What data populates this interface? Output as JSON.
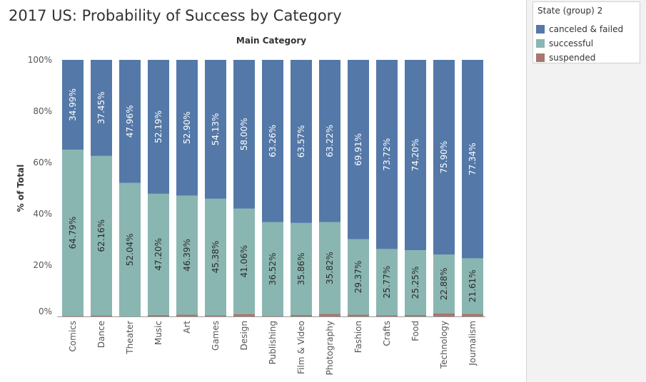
{
  "colors": {
    "canceled_failed": "#5479a8",
    "successful": "#8ab6b1",
    "suspended": "#a8776f",
    "axis": "#666666",
    "grid": "#e6e6e6"
  },
  "legend": {
    "title": "State (group) 2",
    "items": [
      {
        "label": "canceled & failed",
        "color": "#5479a8"
      },
      {
        "label": "successful",
        "color": "#8ab6b1"
      },
      {
        "label": "suspended",
        "color": "#a8776f"
      }
    ]
  },
  "chart_data": {
    "type": "bar",
    "stacked": true,
    "title": "2017 US: Probability of Success by Category",
    "column_header": "Main Category",
    "xlabel": "",
    "ylabel": "% of Total",
    "ylim": [
      0,
      100
    ],
    "y_ticks": [
      "0%",
      "20%",
      "40%",
      "60%",
      "80%",
      "100%"
    ],
    "categories": [
      "Comics",
      "Dance",
      "Theater",
      "Music",
      "Art",
      "Games",
      "Design",
      "Publishing",
      "Film & Video",
      "Photography",
      "Fashion",
      "Crafts",
      "Food",
      "Technology",
      "Journalism"
    ],
    "series": [
      {
        "name": "suspended",
        "values": [
          0.22,
          0.39,
          0.0,
          0.61,
          0.71,
          0.49,
          0.94,
          0.22,
          0.57,
          0.96,
          0.72,
          0.51,
          0.55,
          1.22,
          1.05
        ],
        "labels": [
          "",
          "",
          "",
          "",
          "",
          "",
          "",
          "",
          "",
          "",
          "",
          "",
          "",
          "",
          ""
        ]
      },
      {
        "name": "successful",
        "values": [
          64.79,
          62.16,
          52.04,
          47.2,
          46.39,
          45.38,
          41.06,
          36.52,
          35.86,
          35.82,
          29.37,
          25.77,
          25.25,
          22.88,
          21.61
        ],
        "labels": [
          "64.79%",
          "62.16%",
          "52.04%",
          "47.20%",
          "46.39%",
          "45.38%",
          "41.06%",
          "36.52%",
          "35.86%",
          "35.82%",
          "29.37%",
          "25.77%",
          "25.25%",
          "22.88%",
          "21.61%"
        ]
      },
      {
        "name": "canceled & failed",
        "values": [
          34.99,
          37.45,
          47.96,
          52.19,
          52.9,
          54.13,
          58.0,
          63.26,
          63.57,
          63.22,
          69.91,
          73.72,
          74.2,
          75.9,
          77.34
        ],
        "labels": [
          "34.99%",
          "37.45%",
          "47.96%",
          "52.19%",
          "52.90%",
          "54.13%",
          "58.00%",
          "63.26%",
          "63.57%",
          "63.22%",
          "69.91%",
          "73.72%",
          "74.20%",
          "75.90%",
          "77.34%"
        ]
      }
    ],
    "grid": false,
    "legend_position": "top-right"
  }
}
